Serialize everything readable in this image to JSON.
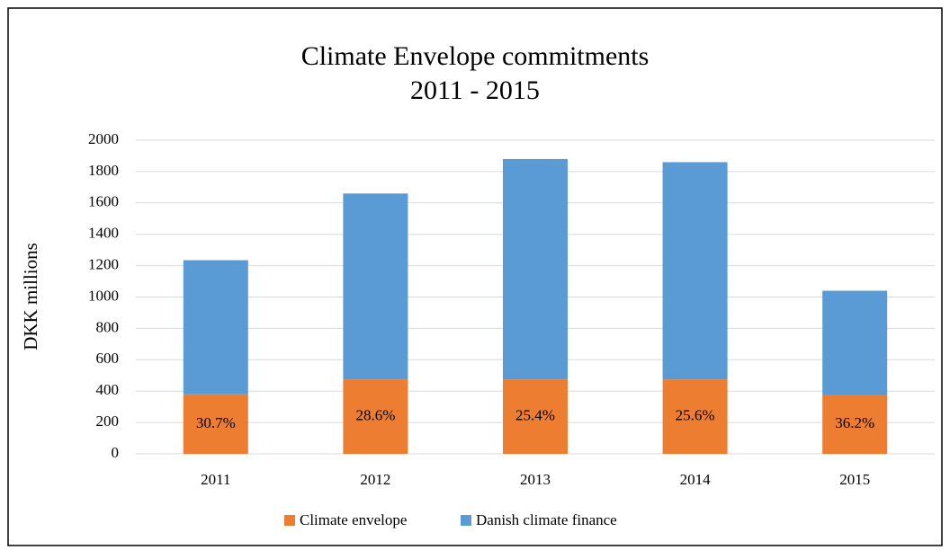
{
  "chart_data": {
    "type": "stacked_bar",
    "title": [
      "Climate Envelope commitments",
      "2011 - 2015"
    ],
    "y_label": "DKK millions",
    "categories": [
      "2011",
      "2012",
      "2013",
      "2014",
      "2015"
    ],
    "series": [
      {
        "name": "Climate envelope",
        "color": "#ed7d31",
        "values": [
          380,
          475,
          475,
          475,
          375
        ]
      },
      {
        "name": "Danish climate finance",
        "color": "#5b9bd5",
        "values": [
          855,
          1185,
          1405,
          1385,
          665
        ]
      }
    ],
    "annotations": [
      "30.7%",
      "28.6%",
      "25.4%",
      "25.6%",
      "36.2%"
    ],
    "ylim": [
      0,
      2000
    ],
    "yticks": [
      0,
      200,
      400,
      600,
      800,
      1000,
      1200,
      1400,
      1600,
      1800,
      2000
    ],
    "grid": true,
    "legend": "bottom"
  }
}
